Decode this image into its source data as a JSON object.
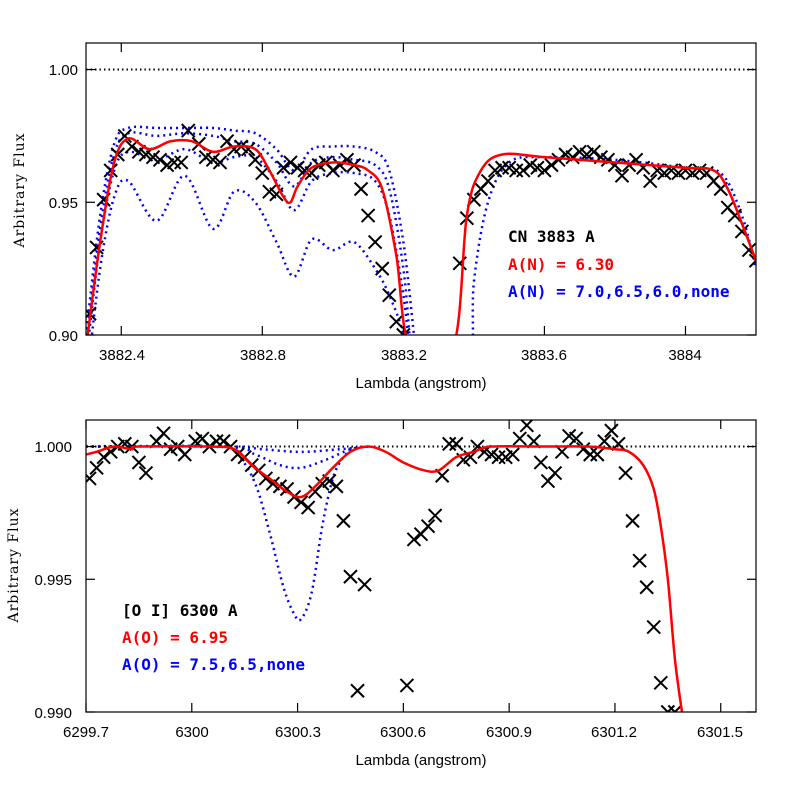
{
  "chart_data": [
    {
      "type": "line",
      "title": "CN 3883 A",
      "xlabel": "Lambda (angstrom)",
      "ylabel": "Arbitrary Flux",
      "xlim": [
        3882.3,
        3884.2
      ],
      "ylim": [
        0.9,
        1.01
      ],
      "xticks": [
        "3882.4",
        "3882.8",
        "3883.2",
        "3883.6",
        "3884"
      ],
      "yticks": [
        "0.90",
        "0.95",
        "1.00"
      ],
      "grid": false,
      "legend": [
        {
          "label": "CN 3883 A",
          "color": "#000000"
        },
        {
          "label": "A(N) = 6.30",
          "color": "#ff0000"
        },
        {
          "label": "A(N) = 7.0,6.5,6.0,none",
          "color": "#0000ff"
        }
      ],
      "series": [
        {
          "name": "continuum",
          "style": "dotted",
          "color": "#000000",
          "x": [
            3882.3,
            3884.2
          ],
          "y": [
            1.0,
            1.0
          ]
        },
        {
          "name": "observed",
          "style": "markers-x",
          "color": "#000000",
          "x": [
            3882.31,
            3882.33,
            3882.35,
            3882.37,
            3882.39,
            3882.41,
            3882.43,
            3882.45,
            3882.47,
            3882.49,
            3882.51,
            3882.53,
            3882.55,
            3882.57,
            3882.59,
            3882.62,
            3882.64,
            3882.66,
            3882.68,
            3882.7,
            3882.72,
            3882.74,
            3882.76,
            3882.78,
            3882.8,
            3882.82,
            3882.84,
            3882.86,
            3882.88,
            3882.9,
            3882.92,
            3882.94,
            3882.96,
            3882.98,
            3883.0,
            3883.02,
            3883.04,
            3883.06,
            3883.08,
            3883.1,
            3883.12,
            3883.14,
            3883.16,
            3883.18,
            3883.2,
            3883.36,
            3883.38,
            3883.4,
            3883.42,
            3883.44,
            3883.46,
            3883.48,
            3883.5,
            3883.52,
            3883.54,
            3883.56,
            3883.58,
            3883.6,
            3883.62,
            3883.64,
            3883.66,
            3883.68,
            3883.7,
            3883.72,
            3883.74,
            3883.76,
            3883.78,
            3883.8,
            3883.82,
            3883.84,
            3883.86,
            3883.88,
            3883.9,
            3883.92,
            3883.94,
            3883.96,
            3883.98,
            3884.0,
            3884.02,
            3884.04,
            3884.06,
            3884.08,
            3884.1,
            3884.12,
            3884.14,
            3884.16,
            3884.18,
            3884.2
          ],
          "y": [
            0.908,
            0.933,
            0.951,
            0.962,
            0.968,
            0.975,
            0.971,
            0.969,
            0.968,
            0.967,
            0.966,
            0.964,
            0.965,
            0.965,
            0.977,
            0.972,
            0.967,
            0.966,
            0.965,
            0.973,
            0.97,
            0.971,
            0.97,
            0.966,
            0.961,
            0.954,
            0.953,
            0.963,
            0.965,
            0.963,
            0.962,
            0.961,
            0.964,
            0.965,
            0.962,
            0.964,
            0.966,
            0.964,
            0.955,
            0.945,
            0.935,
            0.925,
            0.915,
            0.905,
            0.9,
            0.927,
            0.944,
            0.951,
            0.955,
            0.958,
            0.962,
            0.963,
            0.963,
            0.962,
            0.962,
            0.964,
            0.963,
            0.962,
            0.964,
            0.966,
            0.968,
            0.967,
            0.969,
            0.968,
            0.969,
            0.967,
            0.966,
            0.964,
            0.96,
            0.964,
            0.966,
            0.963,
            0.958,
            0.962,
            0.961,
            0.962,
            0.961,
            0.962,
            0.961,
            0.962,
            0.961,
            0.958,
            0.955,
            0.948,
            0.945,
            0.939,
            0.932,
            0.928
          ]
        },
        {
          "name": "A(N) = 6.30",
          "style": "solid",
          "color": "#ff0000",
          "x": [
            3882.3,
            3882.34,
            3882.38,
            3882.42,
            3882.48,
            3882.54,
            3882.6,
            3882.66,
            3882.72,
            3882.78,
            3882.82,
            3882.86,
            3882.88,
            3882.9,
            3882.94,
            3883.0,
            3883.06,
            3883.1,
            3883.14,
            3883.18,
            3883.22,
            3883.34,
            3883.38,
            3883.42,
            3883.48,
            3883.6,
            3883.8,
            3884.0,
            3884.08,
            3884.12,
            3884.16,
            3884.2
          ],
          "y": [
            0.895,
            0.935,
            0.965,
            0.974,
            0.97,
            0.973,
            0.973,
            0.969,
            0.971,
            0.97,
            0.962,
            0.952,
            0.95,
            0.956,
            0.963,
            0.965,
            0.964,
            0.962,
            0.955,
            0.93,
            0.895,
            0.895,
            0.945,
            0.962,
            0.968,
            0.967,
            0.965,
            0.963,
            0.962,
            0.955,
            0.942,
            0.928
          ]
        },
        {
          "name": "A(N) = 7.0",
          "style": "dotted",
          "color": "#0000ff",
          "x": [
            3882.3,
            3882.34,
            3882.38,
            3882.42,
            3882.5,
            3882.58,
            3882.66,
            3882.72,
            3882.78,
            3882.84,
            3882.89,
            3882.94,
            3883.0,
            3883.06,
            3883.12,
            3883.16,
            3883.2,
            3883.22,
            3883.38,
            3883.4,
            3883.44,
            3883.5,
            3883.6,
            3883.8,
            3884.0,
            3884.1,
            3884.16,
            3884.2
          ],
          "y": [
            0.88,
            0.925,
            0.952,
            0.958,
            0.943,
            0.96,
            0.94,
            0.954,
            0.95,
            0.935,
            0.922,
            0.936,
            0.932,
            0.935,
            0.925,
            0.915,
            0.9,
            0.88,
            0.88,
            0.92,
            0.95,
            0.965,
            0.967,
            0.966,
            0.963,
            0.961,
            0.945,
            0.925
          ]
        },
        {
          "name": "A(N) = 6.5",
          "style": "dotted",
          "color": "#0000ff",
          "x": [
            3882.3,
            3882.34,
            3882.38,
            3882.42,
            3882.5,
            3882.58,
            3882.66,
            3882.72,
            3882.78,
            3882.84,
            3882.89,
            3882.94,
            3883.0,
            3883.06,
            3883.12,
            3883.16,
            3883.2,
            3883.22
          ],
          "y": [
            0.89,
            0.935,
            0.962,
            0.969,
            0.966,
            0.97,
            0.965,
            0.967,
            0.967,
            0.958,
            0.947,
            0.958,
            0.961,
            0.961,
            0.958,
            0.945,
            0.915,
            0.89
          ]
        },
        {
          "name": "A(N) = 6.0",
          "style": "dotted",
          "color": "#0000ff",
          "x": [
            3882.3,
            3882.34,
            3882.38,
            3882.42,
            3882.5,
            3882.58,
            3882.66,
            3882.72,
            3882.78,
            3882.84,
            3882.89,
            3882.94,
            3883.0,
            3883.06,
            3883.12,
            3883.16,
            3883.2,
            3883.22
          ],
          "y": [
            0.895,
            0.94,
            0.968,
            0.976,
            0.975,
            0.976,
            0.975,
            0.973,
            0.972,
            0.965,
            0.956,
            0.965,
            0.967,
            0.966,
            0.964,
            0.955,
            0.925,
            0.895
          ]
        },
        {
          "name": "none",
          "style": "dotted",
          "color": "#0000ff",
          "x": [
            3882.3,
            3882.34,
            3882.38,
            3882.42,
            3882.5,
            3882.58,
            3882.66,
            3882.72,
            3882.78,
            3882.84,
            3882.89,
            3882.94,
            3883.0,
            3883.06,
            3883.12,
            3883.16,
            3883.2,
            3883.23
          ],
          "y": [
            0.9,
            0.945,
            0.972,
            0.978,
            0.978,
            0.978,
            0.978,
            0.977,
            0.976,
            0.97,
            0.962,
            0.97,
            0.971,
            0.971,
            0.969,
            0.962,
            0.935,
            0.9
          ]
        }
      ]
    },
    {
      "type": "line",
      "title": "[O I] 6300 A",
      "xlabel": "Lambda (angstrom)",
      "ylabel": "Arbitrary Flux",
      "xlim": [
        6299.7,
        6301.6
      ],
      "ylim": [
        0.99,
        1.001
      ],
      "xticks": [
        "6299.7",
        "6300",
        "6300.3",
        "6300.6",
        "6300.9",
        "6301.2",
        "6301.5"
      ],
      "yticks": [
        "0.990",
        "0.995",
        "1.000"
      ],
      "grid": false,
      "legend": [
        {
          "label": "[O I] 6300 A",
          "color": "#000000"
        },
        {
          "label": "A(O) = 6.95",
          "color": "#ff0000"
        },
        {
          "label": "A(O) = 7.5,6.5,none",
          "color": "#0000ff"
        }
      ],
      "series": [
        {
          "name": "continuum",
          "style": "dotted",
          "color": "#000000",
          "x": [
            6299.7,
            6301.6
          ],
          "y": [
            1.0,
            1.0
          ]
        },
        {
          "name": "observed",
          "style": "markers-x",
          "color": "#000000",
          "x": [
            6299.71,
            6299.73,
            6299.75,
            6299.77,
            6299.79,
            6299.81,
            6299.83,
            6299.85,
            6299.87,
            6299.9,
            6299.92,
            6299.94,
            6299.96,
            6299.98,
            6300.01,
            6300.03,
            6300.05,
            6300.07,
            6300.09,
            6300.11,
            6300.13,
            6300.15,
            6300.17,
            6300.19,
            6300.21,
            6300.23,
            6300.25,
            6300.27,
            6300.29,
            6300.31,
            6300.33,
            6300.35,
            6300.37,
            6300.39,
            6300.41,
            6300.43,
            6300.45,
            6300.47,
            6300.49,
            6300.61,
            6300.63,
            6300.65,
            6300.67,
            6300.69,
            6300.71,
            6300.73,
            6300.75,
            6300.77,
            6300.79,
            6300.81,
            6300.83,
            6300.85,
            6300.87,
            6300.89,
            6300.91,
            6300.93,
            6300.95,
            6300.97,
            6300.99,
            6301.01,
            6301.03,
            6301.05,
            6301.07,
            6301.09,
            6301.11,
            6301.13,
            6301.15,
            6301.17,
            6301.19,
            6301.21,
            6301.23,
            6301.25,
            6301.27,
            6301.29,
            6301.31,
            6301.33,
            6301.35,
            6301.37
          ],
          "y": [
            0.9988,
            0.9992,
            0.9996,
            0.9998,
            1.0,
            1.0001,
            1.0,
            0.9994,
            0.999,
            1.0002,
            1.0005,
            0.9999,
            1.0,
            0.9997,
            1.0002,
            1.0003,
            1.0,
            1.0002,
            1.0002,
            1.0,
            0.9997,
            0.9996,
            0.9993,
            0.9991,
            0.9988,
            0.9986,
            0.9985,
            0.9984,
            0.9981,
            0.9979,
            0.9977,
            0.9983,
            0.9986,
            0.9987,
            0.9985,
            0.9972,
            0.9951,
            0.9908,
            0.9948,
            0.991,
            0.9965,
            0.9967,
            0.997,
            0.9974,
            0.9989,
            1.0001,
            1.0001,
            0.9995,
            0.9996,
            1.0,
            0.9998,
            0.9997,
            0.9996,
            0.9996,
            0.9997,
            1.0003,
            1.0008,
            1.0002,
            0.9994,
            0.9987,
            0.999,
            0.9998,
            1.0004,
            1.0003,
            0.9999,
            0.9997,
            0.9997,
            1.0002,
            1.0006,
            1.0001,
            0.999,
            0.9972,
            0.9957,
            0.9947,
            0.9932,
            0.9911,
            0.99,
            0.99
          ]
        },
        {
          "name": "A(O) = 6.95",
          "style": "solid",
          "color": "#ff0000",
          "x": [
            6299.7,
            6299.73,
            6299.78,
            6299.83,
            6299.85,
            6300.05,
            6300.12,
            6300.17,
            6300.22,
            6300.27,
            6300.31,
            6300.35,
            6300.4,
            6300.45,
            6300.5,
            6300.55,
            6300.6,
            6300.66,
            6300.7,
            6300.75,
            6300.8,
            6300.85,
            6301.0,
            6301.12,
            6301.2,
            6301.24,
            6301.28,
            6301.31,
            6301.33,
            6301.35,
            6301.37,
            6301.39
          ],
          "y": [
            0.9997,
            0.9998,
            1.0,
            0.9999,
            1.0,
            1.0,
            0.9999,
            0.9993,
            0.9988,
            0.9983,
            0.9981,
            0.9985,
            0.9992,
            0.9998,
            1.0,
            0.9998,
            0.9994,
            0.9991,
            0.9991,
            0.9996,
            0.9998,
            1.0,
            1.0,
            1.0,
            0.9999,
            0.9998,
            0.9993,
            0.9984,
            0.997,
            0.995,
            0.992,
            0.99
          ]
        },
        {
          "name": "A(O) = 7.5",
          "style": "dotted",
          "color": "#0000ff",
          "x": [
            6299.7,
            6300.08,
            6300.13,
            6300.18,
            6300.22,
            6300.26,
            6300.29,
            6300.31,
            6300.34,
            6300.37,
            6300.4,
            6300.43,
            6300.46,
            6300.5
          ],
          "y": [
            1.0,
            1.0,
            0.9997,
            0.9986,
            0.9968,
            0.9947,
            0.9937,
            0.9935,
            0.9945,
            0.997,
            0.9988,
            0.9996,
            0.9999,
            1.0
          ]
        },
        {
          "name": "A(O) = 6.5",
          "style": "dotted",
          "color": "#0000ff",
          "x": [
            6299.7,
            6300.1,
            6300.18,
            6300.25,
            6300.31,
            6300.38,
            6300.45,
            6300.5
          ],
          "y": [
            1.0,
            1.0,
            0.9997,
            0.9993,
            0.9992,
            0.9995,
            0.9999,
            1.0
          ]
        },
        {
          "name": "none",
          "style": "dotted",
          "color": "#0000ff",
          "x": [
            6299.7,
            6300.1,
            6300.2,
            6300.31,
            6300.42,
            6300.5
          ],
          "y": [
            1.0,
            1.0,
            0.9999,
            0.9998,
            0.9999,
            1.0
          ]
        }
      ]
    }
  ],
  "panels": {
    "top": {
      "yticks": [
        "1.00",
        "0.95",
        "0.90"
      ],
      "xticks": [
        "3882.4",
        "3882.8",
        "3883.2",
        "3883.6",
        "3884"
      ],
      "xlabel": "Lambda (angstrom)",
      "ylabel": "Arbitrary Flux",
      "legend_title": "CN 3883 A",
      "legend_fit": "A(N) = 6.30",
      "legend_alts": "A(N) = 7.0,6.5,6.0,none"
    },
    "bottom": {
      "yticks": [
        "1.000",
        "0.995",
        "0.990"
      ],
      "xticks": [
        "6299.7",
        "6300",
        "6300.3",
        "6300.6",
        "6300.9",
        "6301.2",
        "6301.5"
      ],
      "xlabel": "Lambda (angstrom)",
      "ylabel": "Arbitrary Flux",
      "legend_title": "[O I] 6300 A",
      "legend_fit": "A(O) = 6.95",
      "legend_alts": "A(O) = 7.5,6.5,none"
    }
  },
  "colors": {
    "fit": "#ff0000",
    "alternates": "#0000ff",
    "observed": "#000000"
  }
}
